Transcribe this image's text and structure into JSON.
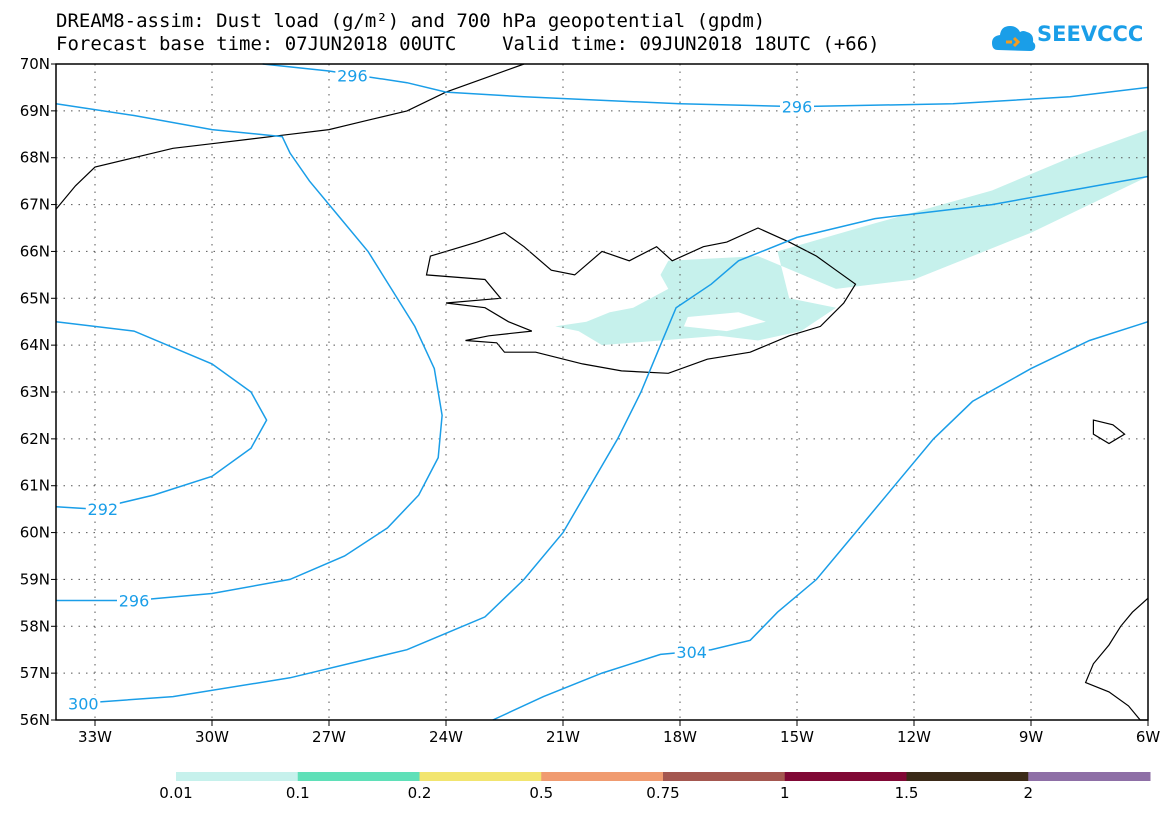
{
  "title": {
    "line1": "DREAM8-assim: Dust load (g/m²) and 700 hPa geopotential (gpdm)",
    "line2": "Forecast base time: 07JUN2018 00UTC    Valid time: 09JUN2018 18UTC (+66)"
  },
  "logo": {
    "text": "SEEVCCC",
    "color": "#1a9ee8"
  },
  "map": {
    "lon_range": [
      -34,
      -6
    ],
    "lat_range": [
      56,
      70
    ],
    "lat_labels": [
      "70N",
      "69N",
      "68N",
      "67N",
      "66N",
      "65N",
      "64N",
      "63N",
      "62N",
      "61N",
      "60N",
      "59N",
      "58N",
      "57N",
      "56N"
    ],
    "lon_labels": [
      "33W",
      "30W",
      "27W",
      "24W",
      "21W",
      "18W",
      "15W",
      "12W",
      "9W",
      "6W"
    ],
    "contour_color": "#1a9ee8",
    "dust_color": "#c6f1ec",
    "contour_labels": [
      {
        "text": "296",
        "lon": -26.4,
        "lat": 69.75
      },
      {
        "text": "296",
        "lon": -15.0,
        "lat": 69.09
      },
      {
        "text": "292",
        "lon": -32.8,
        "lat": 60.5
      },
      {
        "text": "296",
        "lon": -32.0,
        "lat": 58.55
      },
      {
        "text": "300",
        "lon": -33.3,
        "lat": 56.35
      },
      {
        "text": "304",
        "lon": -17.7,
        "lat": 57.45
      }
    ]
  },
  "colorbar": {
    "colors": [
      "#c6f1ec",
      "#5fe0b8",
      "#f2e56f",
      "#f09b70",
      "#a45750",
      "#800835",
      "#3b2a18",
      "#8e6fa6"
    ],
    "labels": [
      "0.01",
      "0.1",
      "0.2",
      "0.5",
      "0.75",
      "1",
      "1.5",
      "2"
    ]
  }
}
